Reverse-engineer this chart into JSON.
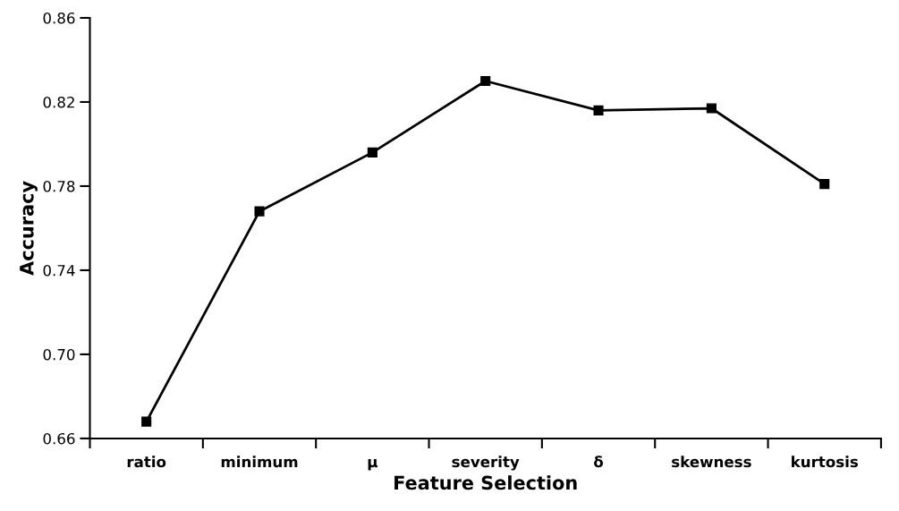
{
  "chart_data": {
    "type": "line",
    "xlabel": "Feature Selection",
    "ylabel": "Accuracy",
    "categories": [
      "ratio",
      "minimum",
      "μ",
      "severity",
      "δ",
      "skewness",
      "kurtosis"
    ],
    "series": [
      {
        "color": "#000000",
        "values": [
          0.668,
          0.768,
          0.796,
          0.83,
          0.816,
          0.817,
          0.781
        ]
      }
    ],
    "ylim": [
      0.66,
      0.86
    ],
    "yticks": [
      0.66,
      {
        "value": 0.7,
        "label": "0.70"
      },
      0.74,
      0.78,
      0.82,
      0.86
    ],
    "marker": "square",
    "line_style": "solid"
  }
}
